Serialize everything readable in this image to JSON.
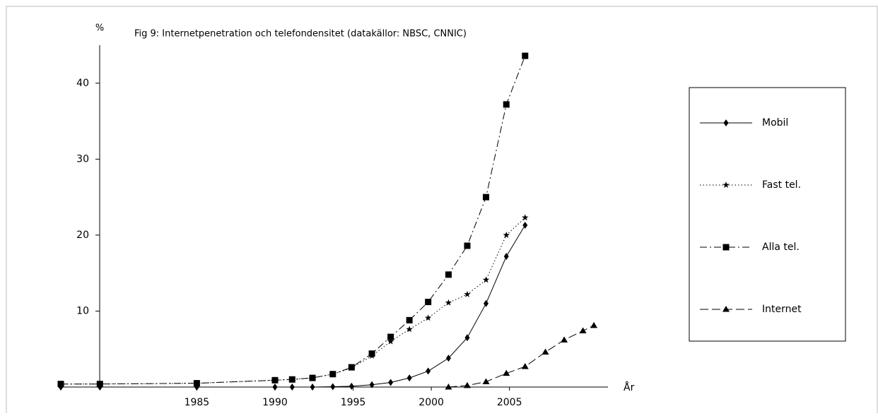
{
  "chart_data": {
    "type": "line",
    "title": "Fig 9: Internetpenetration och telefondensitet (datakällor: NBSC, CNNIC)",
    "y_label": "%",
    "x_label": "År",
    "x": [
      1976.3,
      1978.8,
      1985,
      1990,
      1991.1,
      1992.4,
      1993.7,
      1994.9,
      1996.2,
      1997.4,
      1998.6,
      1999.8,
      2001.1,
      2002.3,
      2003.5,
      2004.8,
      2006.0,
      2007.3,
      2008.5,
      2009.7,
      2010.4
    ],
    "series": [
      {
        "name": "Mobil",
        "color": "#000000",
        "marker": "diamond",
        "dash": "solid",
        "values": [
          0,
          0,
          0,
          0,
          0,
          0,
          0.05,
          0.1,
          0.3,
          0.6,
          1.2,
          2.1,
          3.8,
          6.5,
          11.0,
          17.2,
          21.3,
          null,
          null,
          null,
          null
        ]
      },
      {
        "name": "Fast tel.",
        "color": "#000000",
        "marker": "star",
        "dash": "dotted",
        "values": [
          0.4,
          0.4,
          0.5,
          0.9,
          1.0,
          1.2,
          1.7,
          2.5,
          4.1,
          6.0,
          7.6,
          9.1,
          11.1,
          12.2,
          14.1,
          20.0,
          22.3,
          null,
          null,
          null,
          null
        ]
      },
      {
        "name": "Alla tel.",
        "color": "#000000",
        "marker": "square",
        "dash": "dashdot",
        "values": [
          0.4,
          0.4,
          0.5,
          0.9,
          1.0,
          1.2,
          1.7,
          2.6,
          4.4,
          6.6,
          8.8,
          11.2,
          14.8,
          18.6,
          25.0,
          37.2,
          43.6,
          null,
          null,
          null,
          null
        ]
      },
      {
        "name": "Internet",
        "color": "#000000",
        "marker": "triangle",
        "dash": "dashed",
        "values": [
          null,
          null,
          null,
          null,
          null,
          null,
          null,
          null,
          null,
          null,
          null,
          null,
          0,
          0.2,
          0.7,
          1.8,
          2.7,
          4.6,
          6.2,
          7.4,
          8.1
        ]
      }
    ],
    "xlim": [
      1976.3,
      2011.3
    ],
    "xticks": [
      1985,
      1990,
      1995,
      2000,
      2005
    ],
    "ylim": [
      0,
      45
    ],
    "yticks": [
      10,
      20,
      30,
      40
    ],
    "legend": "right"
  }
}
